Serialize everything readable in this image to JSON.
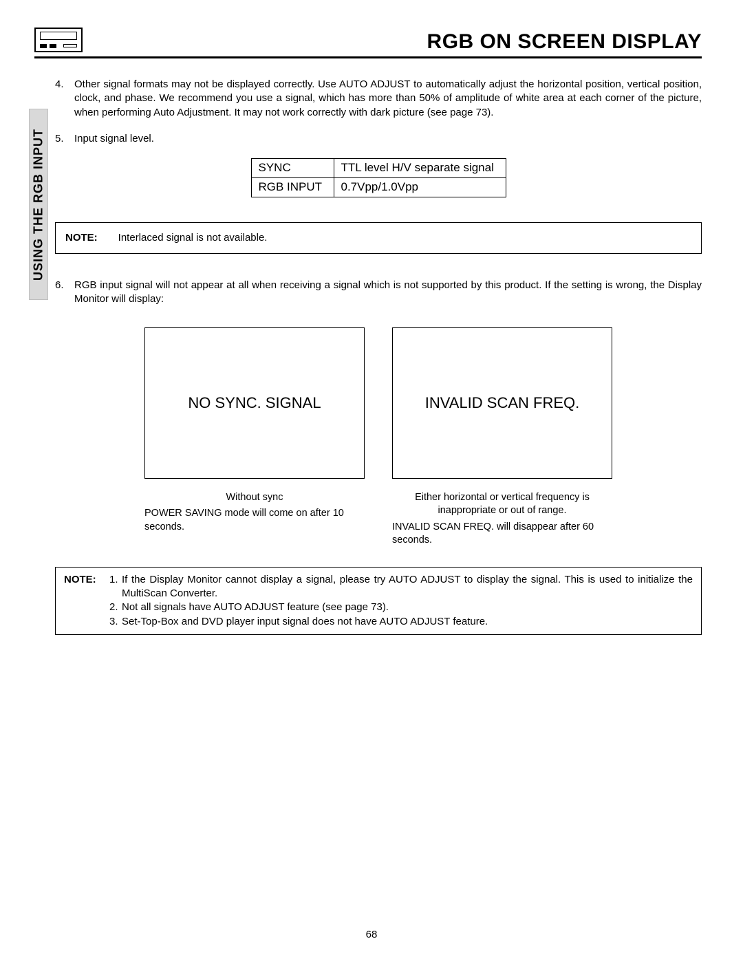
{
  "header": {
    "title": "RGB ON SCREEN DISPLAY"
  },
  "side_tab": "USING THE RGB INPUT",
  "items": {
    "n4": "4.",
    "t4": "Other signal formats may not be displayed correctly.  Use AUTO ADJUST to automatically adjust the horizontal position, vertical position, clock, and phase.   We recommend you use a signal, which has more than 50% of amplitude of white area at each corner of the picture, when performing Auto Adjustment.  It may not work correctly with dark picture (see page 73).",
    "n5": "5.",
    "t5": "Input signal level.",
    "n6": "6.",
    "t6": "RGB input signal will not appear at all when receiving a signal which is not supported by this product. If the setting is wrong, the Display Monitor will display:"
  },
  "signal_table": {
    "rows": [
      [
        "SYNC",
        "TTL level H/V separate signal"
      ],
      [
        "RGB INPUT",
        "0.7Vpp/1.0Vpp"
      ]
    ]
  },
  "note1": {
    "label": "NOTE:",
    "text": "Interlaced signal is not available."
  },
  "displays": {
    "left_box": "NO SYNC. SIGNAL",
    "right_box": "INVALID SCAN FREQ.",
    "left_cap_title": "Without sync",
    "left_cap_body": "POWER SAVING mode will come on after 10 seconds.",
    "right_cap_title": "Either horizontal or vertical frequency is inappropriate or out of range.",
    "right_cap_body": "INVALID SCAN FREQ. will disappear after 60 seconds."
  },
  "note2": {
    "label": "NOTE:",
    "lines": [
      {
        "n": "1.",
        "t": "If the Display Monitor cannot display a signal, please try AUTO ADJUST to display the signal.  This is used to initialize the MultiScan Converter."
      },
      {
        "n": "2.",
        "t": "Not all signals have AUTO ADJUST feature (see page 73)."
      },
      {
        "n": "3.",
        "t": "Set-Top-Box and DVD player input signal does not have AUTO ADJUST feature."
      }
    ]
  },
  "page_number": "68"
}
